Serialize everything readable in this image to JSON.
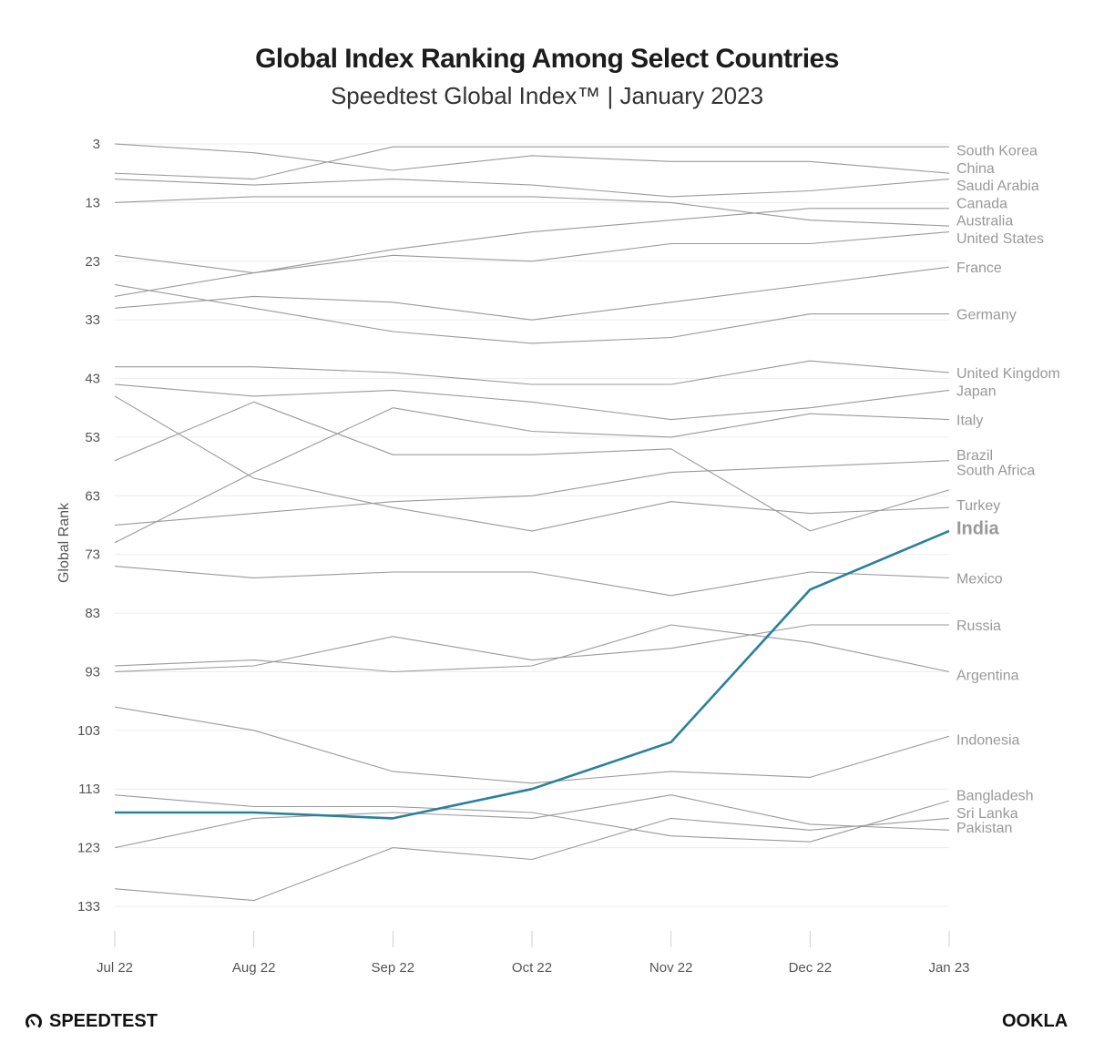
{
  "chart_data": {
    "type": "line",
    "title": "Global Index Ranking Among Select Countries",
    "subtitle": "Speedtest Global Index™ | January 2023",
    "ylabel": "Global Rank",
    "xlabel": "",
    "y_reversed": true,
    "ylim": [
      1,
      140
    ],
    "yticks": [
      3,
      13,
      23,
      33,
      43,
      53,
      63,
      73,
      83,
      93,
      103,
      113,
      123,
      133
    ],
    "categories": [
      "Jul 22",
      "Aug 22",
      "Sep 22",
      "Oct 22",
      "Nov 22",
      "Dec 22",
      "Jan 23"
    ],
    "grid": true,
    "highlight_color": "#2a8199",
    "line_color": "#9a9a9a",
    "label_color": "#a0a0a0",
    "series": [
      {
        "name": "South Korea",
        "values": [
          3,
          4.5,
          7.5,
          5,
          6,
          6,
          8
        ]
      },
      {
        "name": "China",
        "values": [
          8,
          9,
          3.5,
          3.5,
          3.5,
          3.5,
          3.5
        ]
      },
      {
        "name": "Saudi Arabia",
        "values": [
          9,
          10,
          9,
          10,
          12,
          11,
          9
        ]
      },
      {
        "name": "Canada",
        "values": [
          13,
          12,
          12,
          12,
          13,
          16,
          17
        ]
      },
      {
        "name": "Australia",
        "values": [
          29,
          25,
          21,
          18,
          16,
          14,
          14
        ]
      },
      {
        "name": "United States",
        "values": [
          22,
          25,
          22,
          23,
          20,
          20,
          18
        ]
      },
      {
        "name": "France",
        "values": [
          31,
          29,
          30,
          33,
          30,
          27,
          24
        ]
      },
      {
        "name": "Germany",
        "values": [
          27,
          31,
          35,
          37,
          36,
          32,
          32
        ]
      },
      {
        "name": "United Kingdom",
        "values": [
          41,
          41,
          42,
          44,
          44,
          40,
          42
        ]
      },
      {
        "name": "Japan",
        "values": [
          57,
          47,
          56,
          56,
          55,
          69,
          62
        ]
      },
      {
        "name": "Italy",
        "values": [
          44,
          46,
          45,
          47,
          50,
          48,
          45
        ]
      },
      {
        "name": "Brazil",
        "values": [
          71,
          59,
          48,
          52,
          53,
          49,
          50
        ]
      },
      {
        "name": "South Africa",
        "values": [
          46,
          60,
          65,
          69,
          64,
          66,
          65
        ]
      },
      {
        "name": "Turkey",
        "values": [
          68,
          66,
          64,
          63,
          59,
          58,
          57
        ]
      },
      {
        "name": "Mexico",
        "values": [
          75,
          77,
          76,
          76,
          80,
          76,
          77
        ]
      },
      {
        "name": "Russia",
        "values": [
          92,
          91,
          93,
          92,
          85,
          88,
          93
        ]
      },
      {
        "name": "Argentina",
        "values": [
          93,
          92,
          87,
          91,
          89,
          85,
          85
        ]
      },
      {
        "name": "Indonesia",
        "values": [
          99,
          103,
          110,
          112,
          110,
          111,
          104
        ]
      },
      {
        "name": "Bangladesh",
        "values": [
          123,
          118,
          117,
          118,
          114,
          119,
          120
        ]
      },
      {
        "name": "Sri Lanka",
        "values": [
          114,
          116,
          116,
          117,
          121,
          122,
          115
        ]
      },
      {
        "name": "Pakistan",
        "values": [
          130,
          132,
          123,
          125,
          118,
          120,
          118
        ]
      },
      {
        "name": "India",
        "values": [
          117,
          117,
          118,
          113,
          105,
          79,
          69
        ],
        "highlight": true
      }
    ],
    "label_values": {
      "South Korea": 4,
      "China": 7,
      "Saudi Arabia": 10,
      "Canada": 13,
      "Australia": 16,
      "United States": 19,
      "France": 24,
      "Germany": 32,
      "United Kingdom": 42,
      "Japan": 45,
      "Italy": 50,
      "Brazil": 56,
      "South Africa": 58.5,
      "Turkey": 64.5,
      "India": 68.5,
      "Mexico": 77,
      "Russia": 85,
      "Argentina": 93.5,
      "Indonesia": 104.5,
      "Bangladesh": 114,
      "Sri Lanka": 117,
      "Pakistan": 119.5
    }
  },
  "brand": {
    "speedtest": "SPEEDTEST",
    "ookla": "OOKLA"
  }
}
